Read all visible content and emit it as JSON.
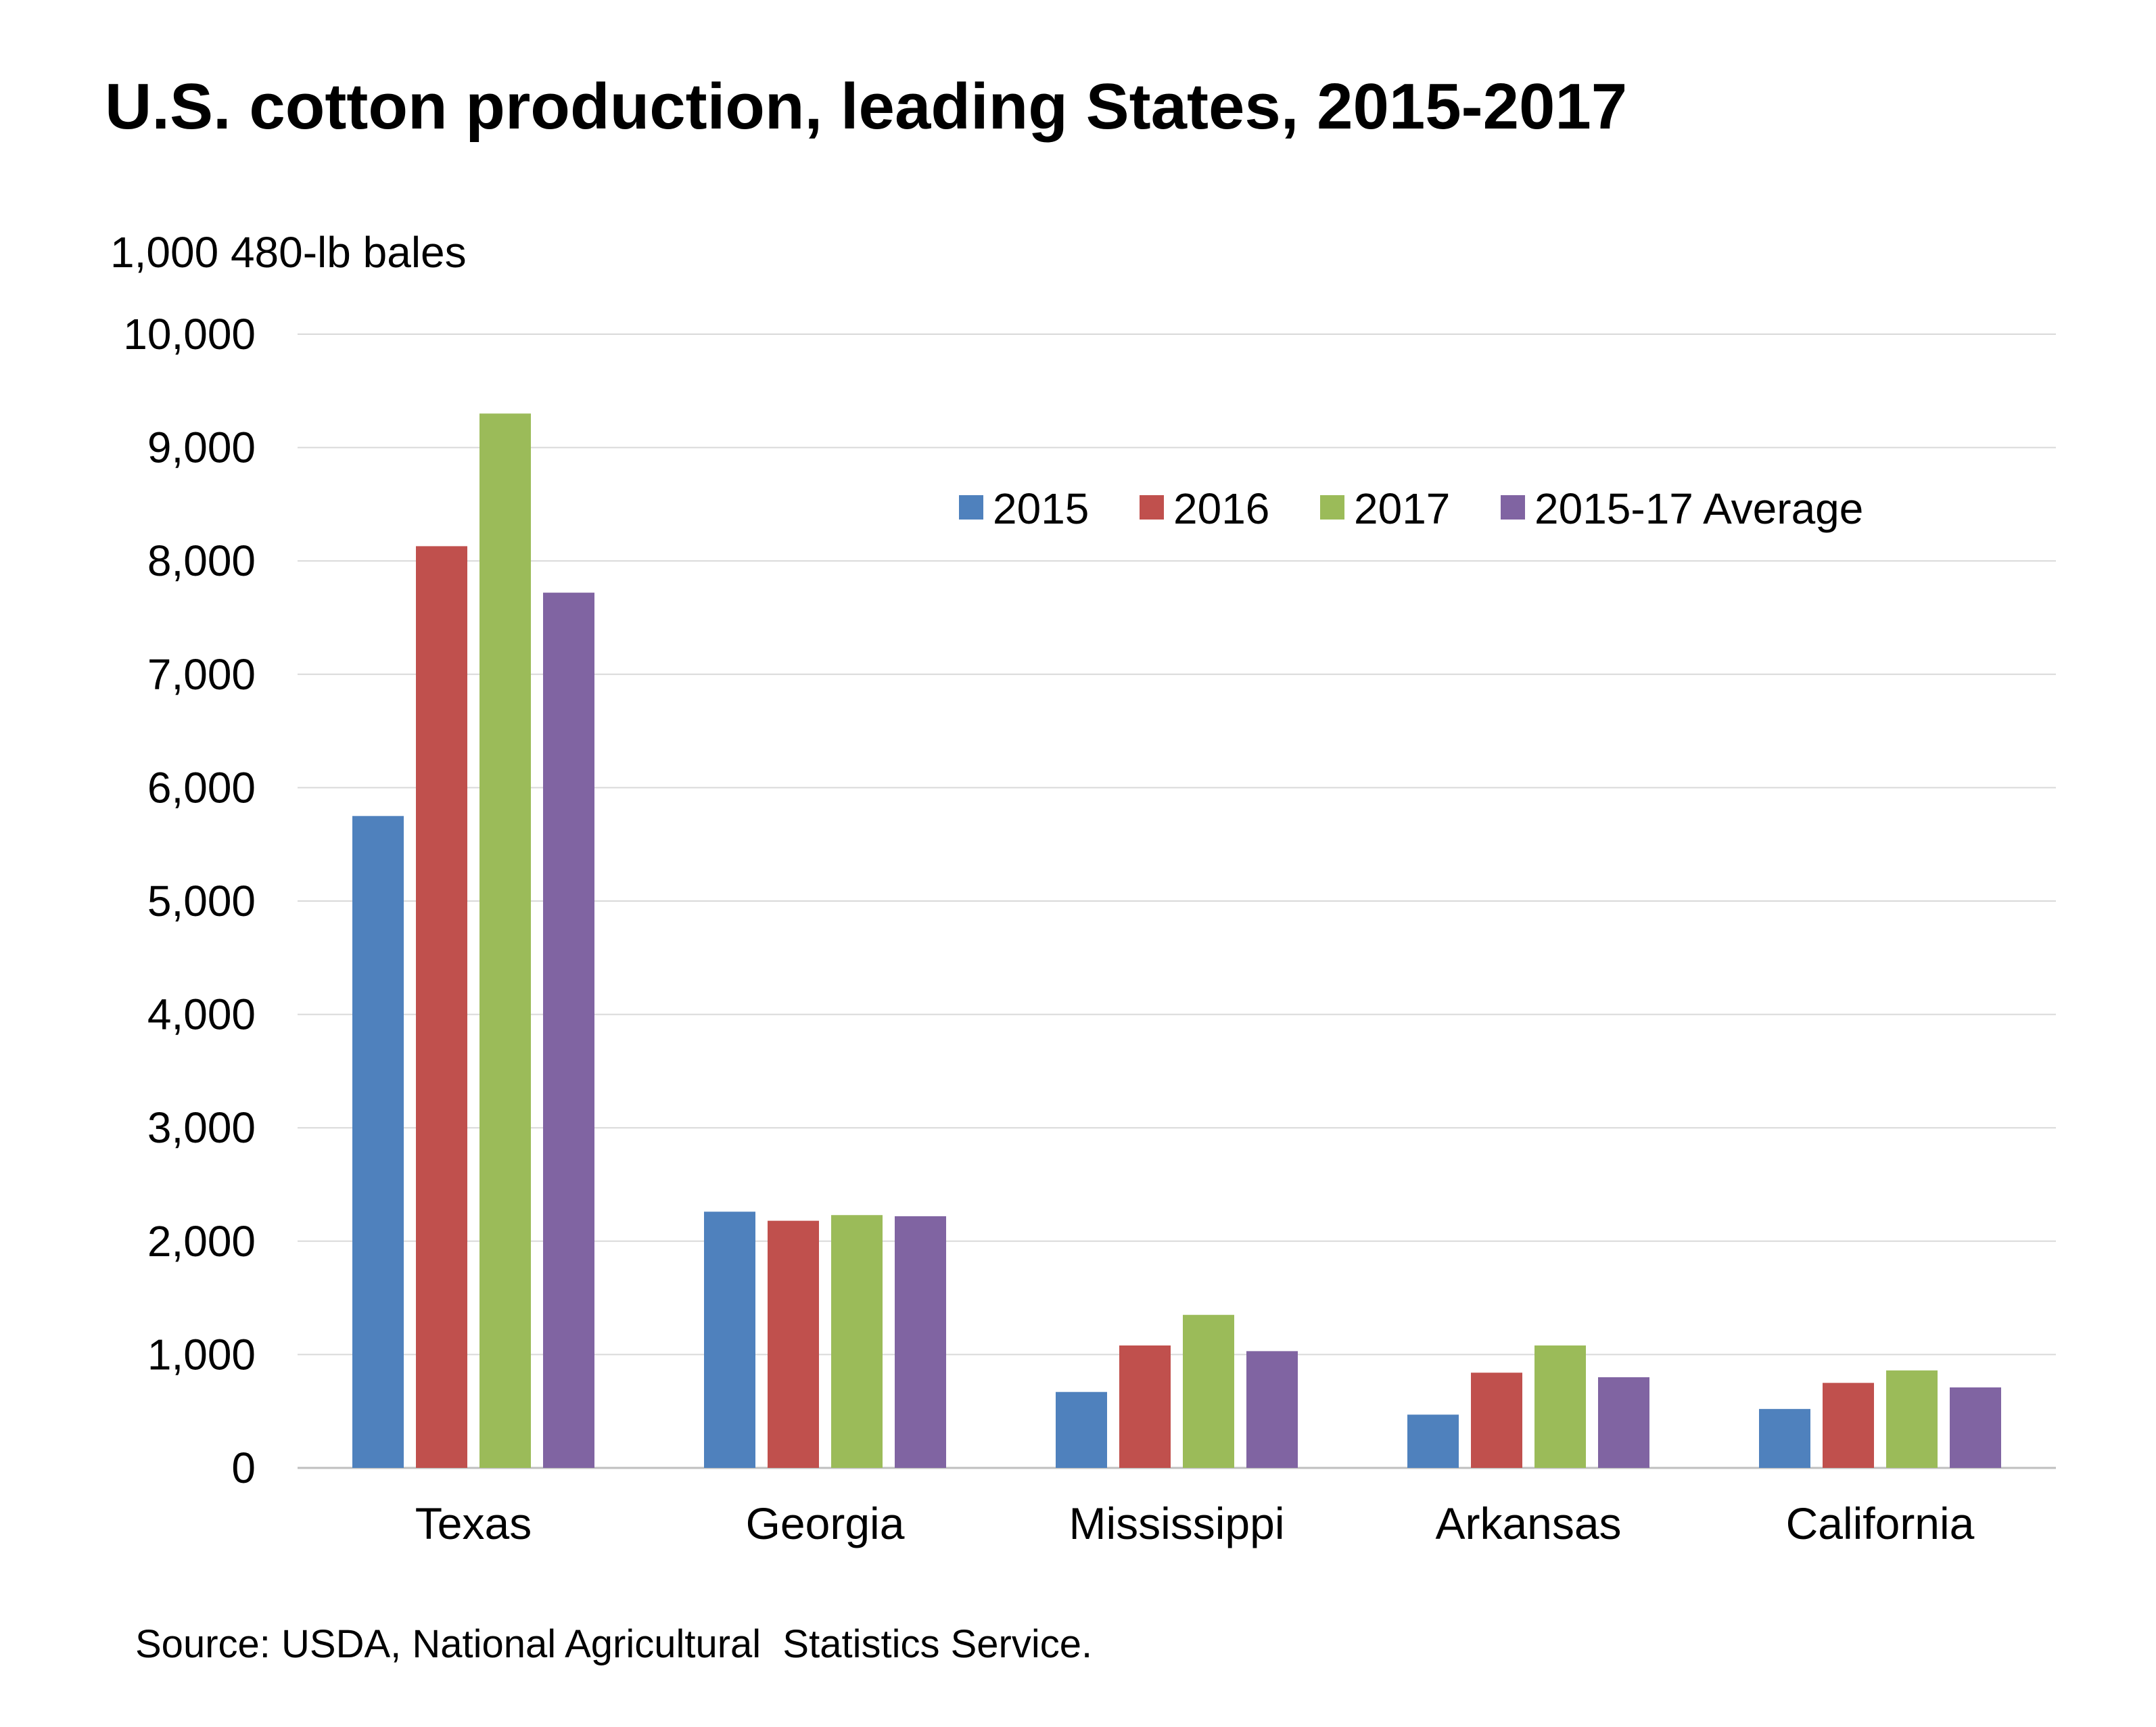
{
  "chart_data": {
    "type": "bar",
    "title": "U.S. cotton production, leading States, 2015-2017",
    "ylabel": "1,000 480-lb bales",
    "xlabel": "",
    "ylim": [
      0,
      10000
    ],
    "yticks": [
      0,
      1000,
      2000,
      3000,
      4000,
      5000,
      6000,
      7000,
      8000,
      9000,
      10000
    ],
    "ytick_labels": [
      "0",
      "1,000",
      "2,000",
      "3,000",
      "4,000",
      "5,000",
      "6,000",
      "7,000",
      "8,000",
      "9,000",
      "10,000"
    ],
    "categories": [
      "Texas",
      "Georgia",
      "Mississippi",
      "Arkansas",
      "California"
    ],
    "series": [
      {
        "name": "2015",
        "color": "#4f81bd",
        "values": [
          5750,
          2260,
          670,
          470,
          520
        ]
      },
      {
        "name": "2016",
        "color": "#c0504d",
        "values": [
          8130,
          2180,
          1080,
          840,
          750
        ]
      },
      {
        "name": "2017",
        "color": "#9bbb59",
        "values": [
          9300,
          2230,
          1350,
          1080,
          860
        ]
      },
      {
        "name": "2015-17 Average",
        "color": "#8064a2",
        "values": [
          7720,
          2220,
          1030,
          800,
          710
        ]
      }
    ],
    "grid": true,
    "legend_position": "top-right",
    "source": "Source: USDA, National Agricultural  Statistics Service."
  }
}
